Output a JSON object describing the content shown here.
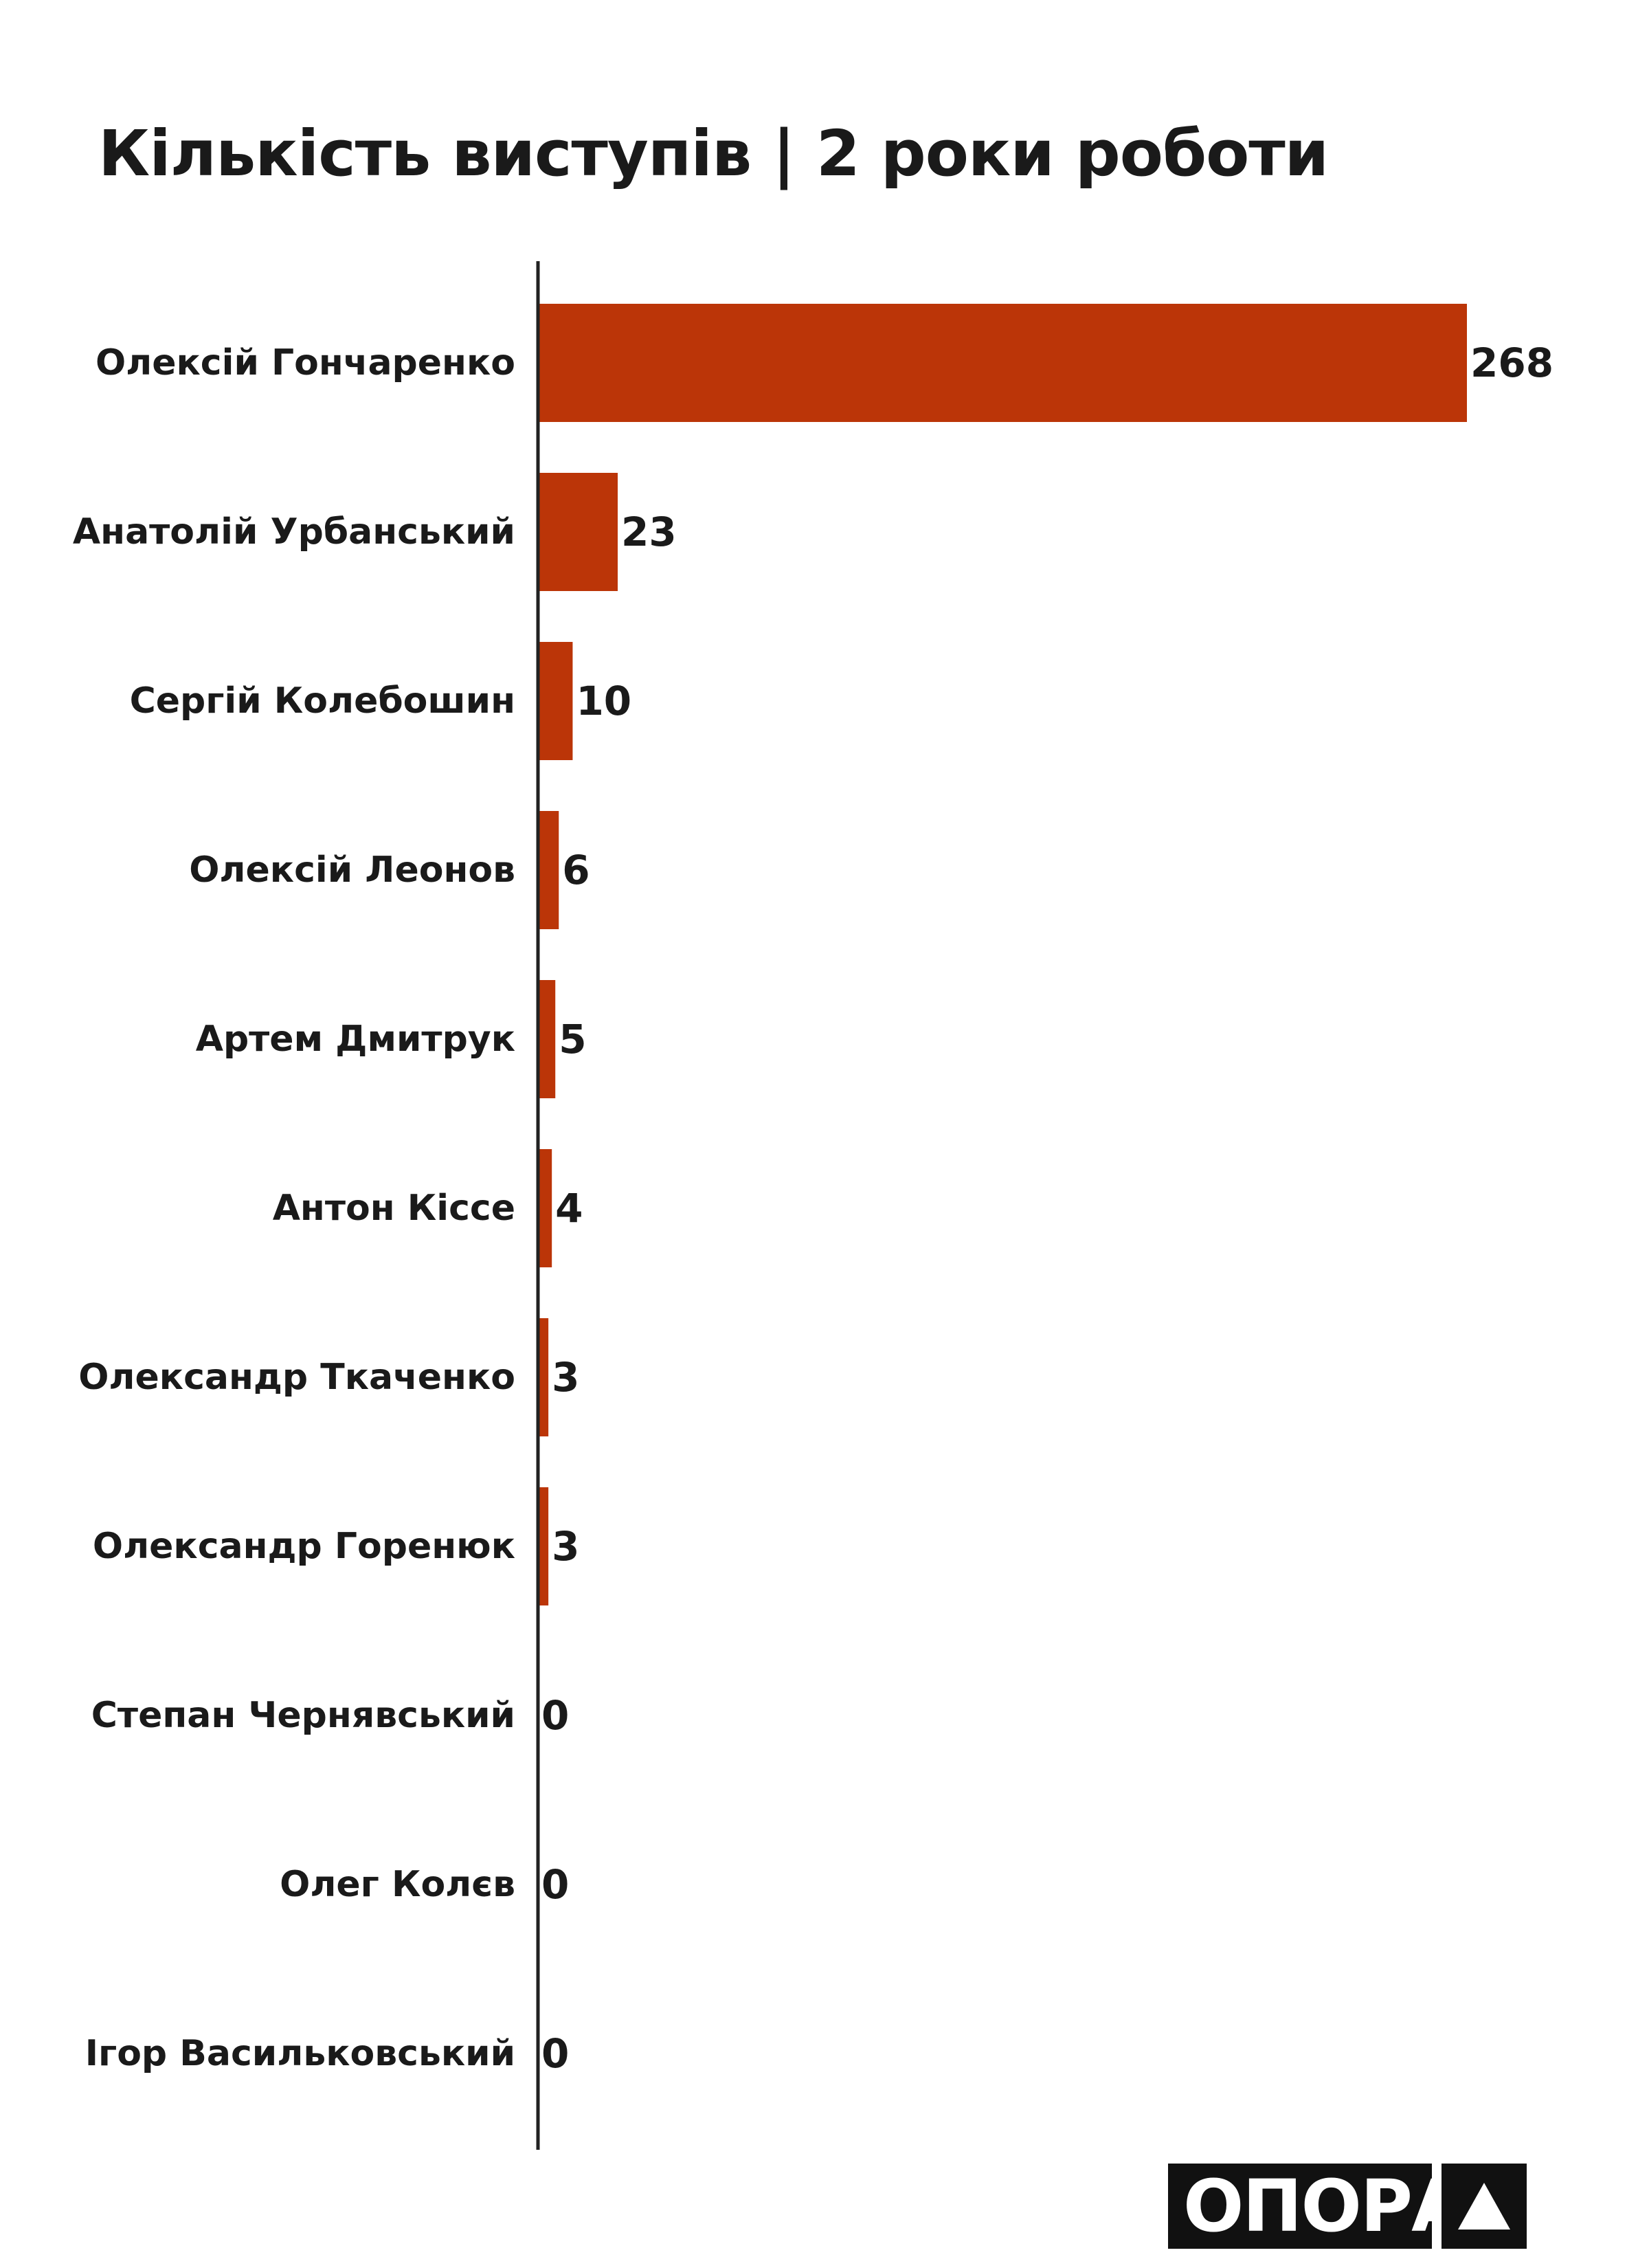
{
  "chart_data": {
    "type": "bar",
    "orientation": "horizontal",
    "title": "Кількість виступів | 2 роки роботи",
    "categories": [
      "Олексій Гончаренко",
      "Анатолій Урбанський",
      "Сергій Колебошин",
      "Олексій Леонов",
      "Артем Дмитрук",
      "Антон Кіссе",
      "Олександр Ткаченко",
      "Олександр Горенюк",
      "Степан Чернявський",
      "Олег Колєв",
      "Ігор Васильковський"
    ],
    "values": [
      268,
      23,
      10,
      6,
      5,
      4,
      3,
      3,
      0,
      0,
      0
    ],
    "xlim": [
      0,
      268
    ],
    "grid": false,
    "bar_color": "#bb3508",
    "axis_color": "#222222"
  },
  "logo": {
    "text": "ОПОРА",
    "mark_icon": "triangle-icon"
  }
}
